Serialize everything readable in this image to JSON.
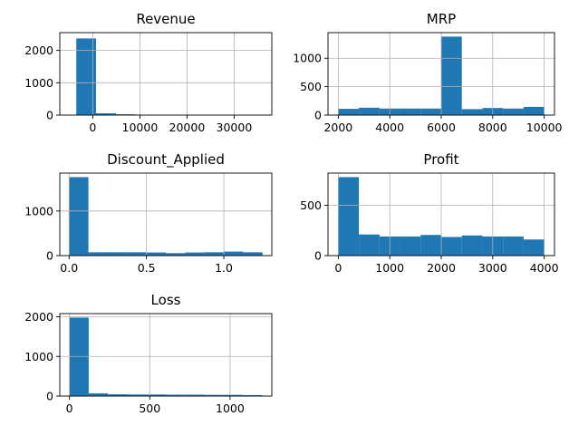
{
  "chart_data": [
    {
      "type": "bar",
      "title": "Revenue",
      "xlim": [
        -7000,
        38000
      ],
      "ylim": [
        0,
        2550
      ],
      "xticks": [
        0,
        10000,
        20000,
        30000
      ],
      "xtick_labels": [
        "0",
        "10000",
        "20000",
        "30000"
      ],
      "yticks": [
        0,
        1000,
        2000
      ],
      "ytick_labels": [
        "0",
        "1000",
        "2000"
      ],
      "grid": true,
      "bins": [
        {
          "x0": -3500,
          "x1": 700,
          "count": 2370
        },
        {
          "x0": 700,
          "x1": 4900,
          "count": 55
        },
        {
          "x0": 4900,
          "x1": 9100,
          "count": 25
        },
        {
          "x0": 9100,
          "x1": 13300,
          "count": 8
        },
        {
          "x0": 13300,
          "x1": 17500,
          "count": 4
        },
        {
          "x0": 17500,
          "x1": 21700,
          "count": 2
        },
        {
          "x0": 21700,
          "x1": 25900,
          "count": 2
        },
        {
          "x0": 25900,
          "x1": 30100,
          "count": 1
        },
        {
          "x0": 30100,
          "x1": 34300,
          "count": 1
        },
        {
          "x0": 34300,
          "x1": 38500,
          "count": 1
        }
      ]
    },
    {
      "type": "bar",
      "title": "MRP",
      "xlim": [
        1600,
        10400
      ],
      "ylim": [
        0,
        1450
      ],
      "xticks": [
        2000,
        4000,
        6000,
        8000,
        10000
      ],
      "xtick_labels": [
        "2000",
        "4000",
        "6000",
        "8000",
        "10000"
      ],
      "yticks": [
        0,
        500,
        1000
      ],
      "ytick_labels": [
        "0",
        "500",
        "1000"
      ],
      "grid": true,
      "bins": [
        {
          "x0": 2000,
          "x1": 2800,
          "count": 110
        },
        {
          "x0": 2800,
          "x1": 3600,
          "count": 130
        },
        {
          "x0": 3600,
          "x1": 4400,
          "count": 115
        },
        {
          "x0": 4400,
          "x1": 5200,
          "count": 115
        },
        {
          "x0": 5200,
          "x1": 6000,
          "count": 115
        },
        {
          "x0": 6000,
          "x1": 6800,
          "count": 1380
        },
        {
          "x0": 6800,
          "x1": 7600,
          "count": 105
        },
        {
          "x0": 7600,
          "x1": 8400,
          "count": 125
        },
        {
          "x0": 8400,
          "x1": 9200,
          "count": 115
        },
        {
          "x0": 9200,
          "x1": 10000,
          "count": 145
        }
      ]
    },
    {
      "type": "bar",
      "title": "Discount_Applied",
      "xlim": [
        -0.06,
        1.31
      ],
      "ylim": [
        0,
        1850
      ],
      "xticks": [
        0.0,
        0.5,
        1.0
      ],
      "xtick_labels": [
        "0.0",
        "0.5",
        "1.0"
      ],
      "yticks": [
        0,
        1000
      ],
      "ytick_labels": [
        "0",
        "1000"
      ],
      "grid": true,
      "bins": [
        {
          "x0": 0.0,
          "x1": 0.125,
          "count": 1760
        },
        {
          "x0": 0.125,
          "x1": 0.25,
          "count": 75
        },
        {
          "x0": 0.25,
          "x1": 0.375,
          "count": 75
        },
        {
          "x0": 0.375,
          "x1": 0.5,
          "count": 75
        },
        {
          "x0": 0.5,
          "x1": 0.625,
          "count": 70
        },
        {
          "x0": 0.625,
          "x1": 0.75,
          "count": 55
        },
        {
          "x0": 0.75,
          "x1": 0.875,
          "count": 70
        },
        {
          "x0": 0.875,
          "x1": 1.0,
          "count": 75
        },
        {
          "x0": 1.0,
          "x1": 1.125,
          "count": 90
        },
        {
          "x0": 1.125,
          "x1": 1.25,
          "count": 75
        }
      ]
    },
    {
      "type": "bar",
      "title": "Profit",
      "xlim": [
        -200,
        4200
      ],
      "ylim": [
        0,
        820
      ],
      "xticks": [
        0,
        1000,
        2000,
        3000,
        4000
      ],
      "xtick_labels": [
        "0",
        "1000",
        "2000",
        "3000",
        "4000"
      ],
      "yticks": [
        0,
        500
      ],
      "ytick_labels": [
        "0",
        "500"
      ],
      "grid": true,
      "bins": [
        {
          "x0": 0,
          "x1": 400,
          "count": 780
        },
        {
          "x0": 400,
          "x1": 800,
          "count": 210
        },
        {
          "x0": 800,
          "x1": 1200,
          "count": 190
        },
        {
          "x0": 1200,
          "x1": 1600,
          "count": 190
        },
        {
          "x0": 1600,
          "x1": 2000,
          "count": 205
        },
        {
          "x0": 2000,
          "x1": 2400,
          "count": 185
        },
        {
          "x0": 2400,
          "x1": 2800,
          "count": 200
        },
        {
          "x0": 2800,
          "x1": 3200,
          "count": 190
        },
        {
          "x0": 3200,
          "x1": 3600,
          "count": 190
        },
        {
          "x0": 3600,
          "x1": 4000,
          "count": 160
        }
      ]
    },
    {
      "type": "bar",
      "title": "Loss",
      "xlim": [
        -60,
        1260
      ],
      "ylim": [
        0,
        2080
      ],
      "xticks": [
        0,
        500,
        1000
      ],
      "xtick_labels": [
        "0",
        "500",
        "1000"
      ],
      "yticks": [
        0,
        1000,
        2000
      ],
      "ytick_labels": [
        "0",
        "1000",
        "2000"
      ],
      "grid": true,
      "bins": [
        {
          "x0": 0,
          "x1": 120,
          "count": 1980
        },
        {
          "x0": 120,
          "x1": 240,
          "count": 70
        },
        {
          "x0": 240,
          "x1": 360,
          "count": 45
        },
        {
          "x0": 360,
          "x1": 480,
          "count": 40
        },
        {
          "x0": 480,
          "x1": 600,
          "count": 40
        },
        {
          "x0": 600,
          "x1": 720,
          "count": 35
        },
        {
          "x0": 720,
          "x1": 840,
          "count": 35
        },
        {
          "x0": 840,
          "x1": 960,
          "count": 30
        },
        {
          "x0": 960,
          "x1": 1080,
          "count": 30
        },
        {
          "x0": 1080,
          "x1": 1200,
          "count": 25
        }
      ]
    }
  ]
}
